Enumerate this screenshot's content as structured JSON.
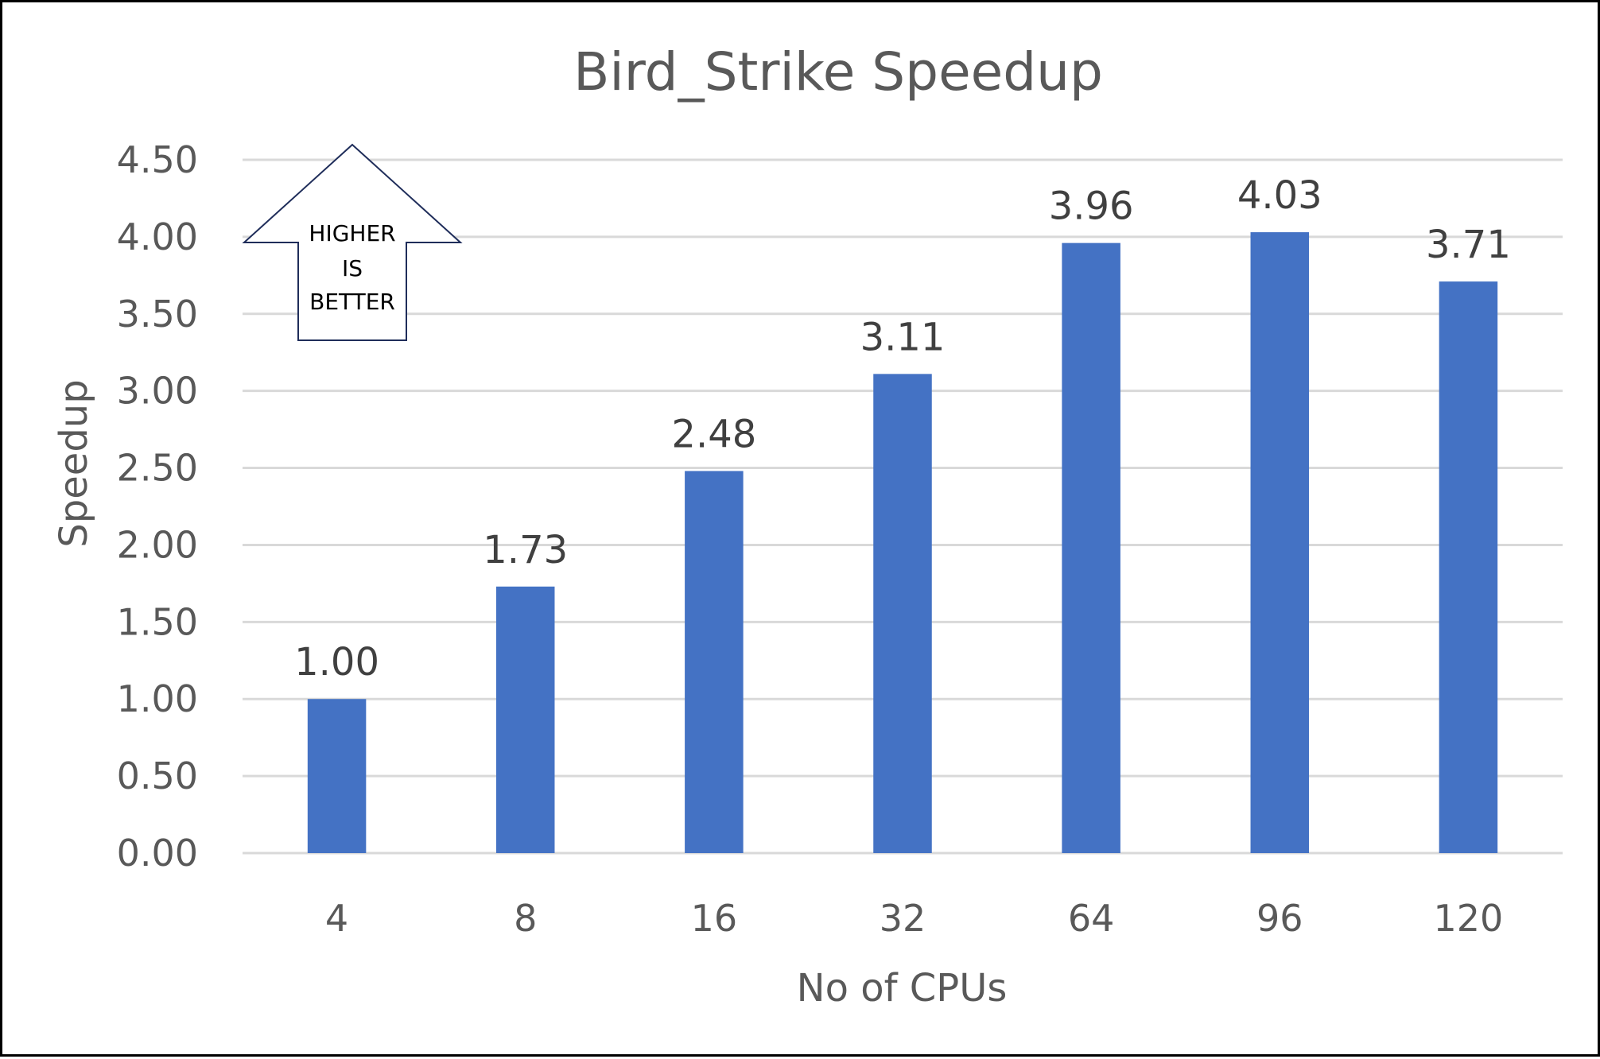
{
  "chart_data": {
    "type": "bar",
    "title": "Bird_Strike Speedup",
    "xlabel": "No of CPUs",
    "ylabel": "Speedup",
    "categories": [
      "4",
      "8",
      "16",
      "32",
      "64",
      "96",
      "120"
    ],
    "values": [
      1.0,
      1.73,
      2.48,
      3.11,
      3.96,
      4.03,
      3.71
    ],
    "data_labels": [
      "1.00",
      "1.73",
      "2.48",
      "3.11",
      "3.96",
      "4.03",
      "3.71"
    ],
    "ylim": [
      0,
      4.5
    ],
    "yticks": [
      "0.00",
      "0.50",
      "1.00",
      "1.50",
      "2.00",
      "2.50",
      "3.00",
      "3.50",
      "4.00",
      "4.50"
    ],
    "grid": true,
    "legend": "none",
    "bar_color": "#4472c4",
    "annotation": {
      "shape": "up-arrow",
      "lines": [
        "HIGHER",
        "IS",
        "BETTER"
      ],
      "outline_color": "#1f2d5a"
    }
  }
}
